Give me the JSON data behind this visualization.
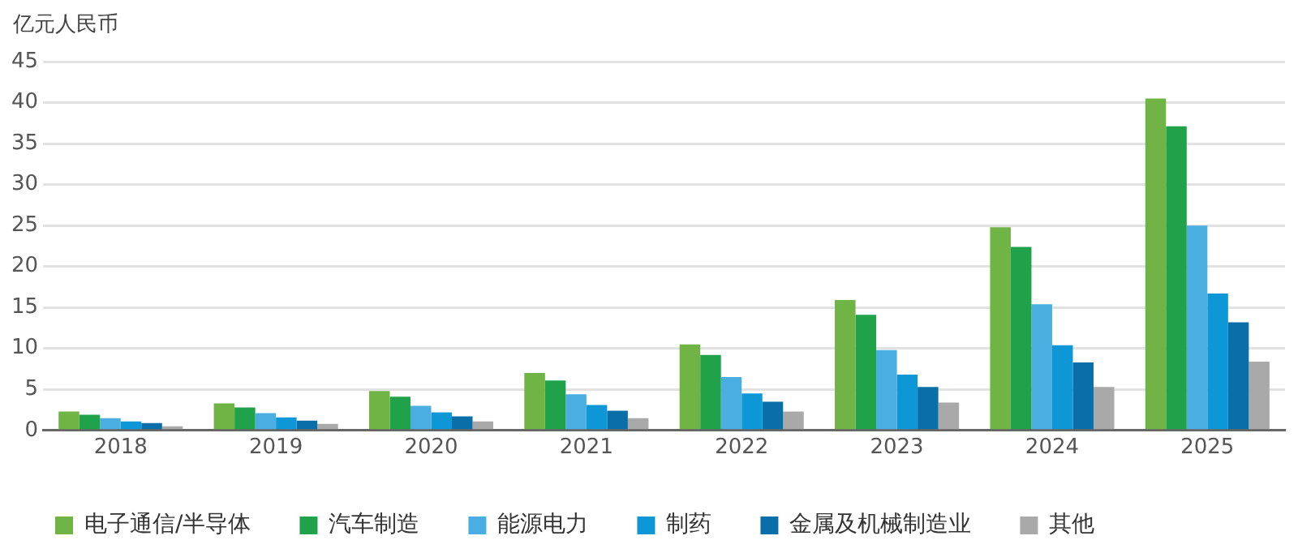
{
  "chart_data": {
    "type": "bar",
    "ylabel": "亿元人民币",
    "categories": [
      "2018",
      "2019",
      "2020",
      "2021",
      "2022",
      "2023",
      "2024",
      "2025"
    ],
    "series": [
      {
        "name": "电子通信/半导体",
        "color": "#70b445",
        "values": [
          2.3,
          3.3,
          4.8,
          7.0,
          10.5,
          15.9,
          24.8,
          40.5
        ]
      },
      {
        "name": "汽车制造",
        "color": "#1fa24a",
        "values": [
          1.9,
          2.8,
          4.1,
          6.1,
          9.2,
          14.1,
          22.4,
          37.1
        ]
      },
      {
        "name": "能源电力",
        "color": "#4aaee0",
        "values": [
          1.5,
          2.1,
          3.0,
          4.4,
          6.5,
          9.8,
          15.4,
          25.0
        ]
      },
      {
        "name": "制药",
        "color": "#0d97d6",
        "values": [
          1.1,
          1.6,
          2.2,
          3.1,
          4.5,
          6.8,
          10.4,
          16.7
        ]
      },
      {
        "name": "金属及机械制造业",
        "color": "#0a6fa8",
        "values": [
          0.9,
          1.2,
          1.7,
          2.4,
          3.5,
          5.3,
          8.3,
          13.2
        ]
      },
      {
        "name": "其他",
        "color": "#a9a9a9",
        "values": [
          0.5,
          0.8,
          1.1,
          1.5,
          2.3,
          3.4,
          5.3,
          8.4
        ]
      }
    ],
    "ylim": [
      0,
      45
    ],
    "yticks": [
      0,
      5,
      10,
      15,
      20,
      25,
      30,
      35,
      40,
      45
    ],
    "grid": "y",
    "legend": "bottom"
  }
}
